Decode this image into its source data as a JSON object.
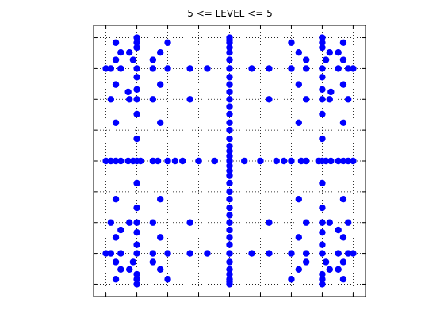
{
  "chart_data": {
    "type": "scatter",
    "title": "5 <= LEVEL <= 5",
    "xlabel": "",
    "ylabel": "",
    "xlim": [
      -1.1,
      1.1
    ],
    "ylim": [
      -1.1,
      1.1
    ],
    "grid": true,
    "grid_style": "dotted",
    "tick_labels_shown": false,
    "marker_color": "#0000ff",
    "axis_color": "#000000",
    "xticks": [
      -1,
      -0.75,
      -0.5,
      -0.25,
      0,
      0.25,
      0.5,
      0.75,
      1
    ],
    "yticks": [
      -1,
      -0.75,
      -0.5,
      -0.25,
      0,
      0.25,
      0.5,
      0.75,
      1
    ],
    "series": [
      {
        "points": [
          [
            0,
            -1
          ],
          [
            0,
            -0.98
          ],
          [
            0,
            -0.96
          ],
          [
            0,
            -0.92
          ],
          [
            0,
            -0.88
          ],
          [
            0,
            -0.82
          ],
          [
            0,
            -0.75
          ],
          [
            0,
            -0.68
          ],
          [
            0,
            -0.62
          ],
          [
            0,
            -0.56
          ],
          [
            0,
            -0.5
          ],
          [
            0,
            -0.44
          ],
          [
            0,
            -0.38
          ],
          [
            0,
            -0.31
          ],
          [
            0,
            -0.25
          ],
          [
            0,
            -0.18
          ],
          [
            0,
            -0.12
          ],
          [
            0,
            -0.08
          ],
          [
            0,
            -0.04
          ],
          [
            0,
            0.04
          ],
          [
            0,
            0.08
          ],
          [
            0,
            0.12
          ],
          [
            0,
            0.18
          ],
          [
            0,
            0.25
          ],
          [
            0,
            0.31
          ],
          [
            0,
            0.38
          ],
          [
            0,
            0.44
          ],
          [
            0,
            0.5
          ],
          [
            0,
            0.56
          ],
          [
            0,
            0.62
          ],
          [
            0,
            0.68
          ],
          [
            0,
            0.75
          ],
          [
            0,
            0.82
          ],
          [
            0,
            0.88
          ],
          [
            0,
            0.92
          ],
          [
            0,
            0.96
          ],
          [
            0,
            0.98
          ],
          [
            0,
            1
          ],
          [
            -1,
            0
          ],
          [
            -0.96,
            0
          ],
          [
            -0.92,
            0
          ],
          [
            -0.88,
            0
          ],
          [
            -0.82,
            0
          ],
          [
            -0.78,
            0
          ],
          [
            -0.75,
            0
          ],
          [
            -0.72,
            0
          ],
          [
            -0.62,
            0
          ],
          [
            -0.58,
            0
          ],
          [
            -0.5,
            0
          ],
          [
            -0.44,
            0
          ],
          [
            -0.38,
            0
          ],
          [
            -0.25,
            0
          ],
          [
            -0.12,
            0
          ],
          [
            0,
            0
          ],
          [
            0.12,
            0
          ],
          [
            0.25,
            0
          ],
          [
            0.38,
            0
          ],
          [
            0.44,
            0
          ],
          [
            0.5,
            0
          ],
          [
            0.58,
            0
          ],
          [
            0.62,
            0
          ],
          [
            0.72,
            0
          ],
          [
            0.75,
            0
          ],
          [
            0.78,
            0
          ],
          [
            0.82,
            0
          ],
          [
            0.88,
            0
          ],
          [
            0.92,
            0
          ],
          [
            0.96,
            0
          ],
          [
            1,
            0
          ],
          [
            -0.92,
            0.96
          ],
          [
            -0.75,
            0.96
          ],
          [
            -0.5,
            0.96
          ],
          [
            0.5,
            0.96
          ],
          [
            0.75,
            0.96
          ],
          [
            0.92,
            0.96
          ],
          [
            -0.75,
            1
          ],
          [
            -0.75,
            0.92
          ],
          [
            0.75,
            1
          ],
          [
            0.75,
            0.92
          ],
          [
            -0.88,
            0.88
          ],
          [
            -0.81,
            0.88
          ],
          [
            -0.56,
            0.88
          ],
          [
            0.56,
            0.88
          ],
          [
            0.81,
            0.88
          ],
          [
            0.88,
            0.88
          ],
          [
            -0.92,
            0.82
          ],
          [
            -0.78,
            0.82
          ],
          [
            -0.62,
            0.82
          ],
          [
            0.62,
            0.82
          ],
          [
            0.78,
            0.82
          ],
          [
            0.92,
            0.82
          ],
          [
            -1,
            0.75
          ],
          [
            -0.96,
            0.75
          ],
          [
            -0.88,
            0.75
          ],
          [
            -0.75,
            0.75
          ],
          [
            -0.62,
            0.75
          ],
          [
            -0.5,
            0.75
          ],
          [
            -0.32,
            0.75
          ],
          [
            -0.18,
            0.75
          ],
          [
            0.18,
            0.75
          ],
          [
            0.32,
            0.75
          ],
          [
            0.5,
            0.75
          ],
          [
            0.62,
            0.75
          ],
          [
            0.75,
            0.75
          ],
          [
            0.88,
            0.75
          ],
          [
            0.96,
            0.75
          ],
          [
            1,
            0.75
          ],
          [
            -0.75,
            0.68
          ],
          [
            0.75,
            0.68
          ],
          [
            -0.75,
            0.58
          ],
          [
            0.75,
            0.58
          ],
          [
            -0.92,
            0.62
          ],
          [
            -0.56,
            0.62
          ],
          [
            0.56,
            0.62
          ],
          [
            0.92,
            0.62
          ],
          [
            -0.82,
            0.56
          ],
          [
            0.82,
            0.56
          ],
          [
            -0.96,
            0.5
          ],
          [
            -0.81,
            0.5
          ],
          [
            -0.75,
            0.5
          ],
          [
            -0.62,
            0.5
          ],
          [
            -0.32,
            0.5
          ],
          [
            0.32,
            0.5
          ],
          [
            0.62,
            0.5
          ],
          [
            0.75,
            0.5
          ],
          [
            0.81,
            0.5
          ],
          [
            0.96,
            0.5
          ],
          [
            -0.75,
            0.38
          ],
          [
            0.75,
            0.38
          ],
          [
            -0.92,
            0.31
          ],
          [
            -0.56,
            0.31
          ],
          [
            0.56,
            0.31
          ],
          [
            0.92,
            0.31
          ],
          [
            -0.75,
            0.18
          ],
          [
            0.75,
            0.18
          ],
          [
            -0.75,
            -0.18
          ],
          [
            0.75,
            -0.18
          ],
          [
            -0.92,
            -0.31
          ],
          [
            -0.56,
            -0.31
          ],
          [
            0.56,
            -0.31
          ],
          [
            0.92,
            -0.31
          ],
          [
            -0.75,
            -0.38
          ],
          [
            0.75,
            -0.38
          ],
          [
            -0.96,
            -0.5
          ],
          [
            -0.81,
            -0.5
          ],
          [
            -0.75,
            -0.5
          ],
          [
            -0.62,
            -0.5
          ],
          [
            -0.32,
            -0.5
          ],
          [
            0.32,
            -0.5
          ],
          [
            0.62,
            -0.5
          ],
          [
            0.75,
            -0.5
          ],
          [
            0.81,
            -0.5
          ],
          [
            0.96,
            -0.5
          ],
          [
            -0.88,
            -0.56
          ],
          [
            0.88,
            -0.56
          ],
          [
            -0.75,
            -0.58
          ],
          [
            0.75,
            -0.58
          ],
          [
            -0.92,
            -0.62
          ],
          [
            -0.56,
            -0.62
          ],
          [
            0.56,
            -0.62
          ],
          [
            0.92,
            -0.62
          ],
          [
            -0.75,
            -0.68
          ],
          [
            0.75,
            -0.68
          ],
          [
            -1,
            -0.75
          ],
          [
            -0.96,
            -0.75
          ],
          [
            -0.88,
            -0.75
          ],
          [
            -0.75,
            -0.75
          ],
          [
            -0.62,
            -0.75
          ],
          [
            -0.5,
            -0.75
          ],
          [
            -0.32,
            -0.75
          ],
          [
            -0.18,
            -0.75
          ],
          [
            0.18,
            -0.75
          ],
          [
            0.32,
            -0.75
          ],
          [
            0.5,
            -0.75
          ],
          [
            0.62,
            -0.75
          ],
          [
            0.75,
            -0.75
          ],
          [
            0.88,
            -0.75
          ],
          [
            0.96,
            -0.75
          ],
          [
            1,
            -0.75
          ],
          [
            -0.92,
            -0.82
          ],
          [
            -0.78,
            -0.82
          ],
          [
            -0.62,
            -0.82
          ],
          [
            0.62,
            -0.82
          ],
          [
            0.78,
            -0.82
          ],
          [
            0.92,
            -0.82
          ],
          [
            -0.88,
            -0.88
          ],
          [
            -0.81,
            -0.88
          ],
          [
            -0.56,
            -0.88
          ],
          [
            0.56,
            -0.88
          ],
          [
            0.81,
            -0.88
          ],
          [
            0.88,
            -0.88
          ],
          [
            -0.75,
            -0.92
          ],
          [
            0.75,
            -0.92
          ],
          [
            -0.92,
            -0.96
          ],
          [
            -0.75,
            -0.96
          ],
          [
            -0.5,
            -0.96
          ],
          [
            0.5,
            -0.96
          ],
          [
            0.75,
            -0.96
          ],
          [
            0.92,
            -0.96
          ],
          [
            -0.75,
            -1
          ],
          [
            0.75,
            -1
          ]
        ]
      }
    ]
  }
}
